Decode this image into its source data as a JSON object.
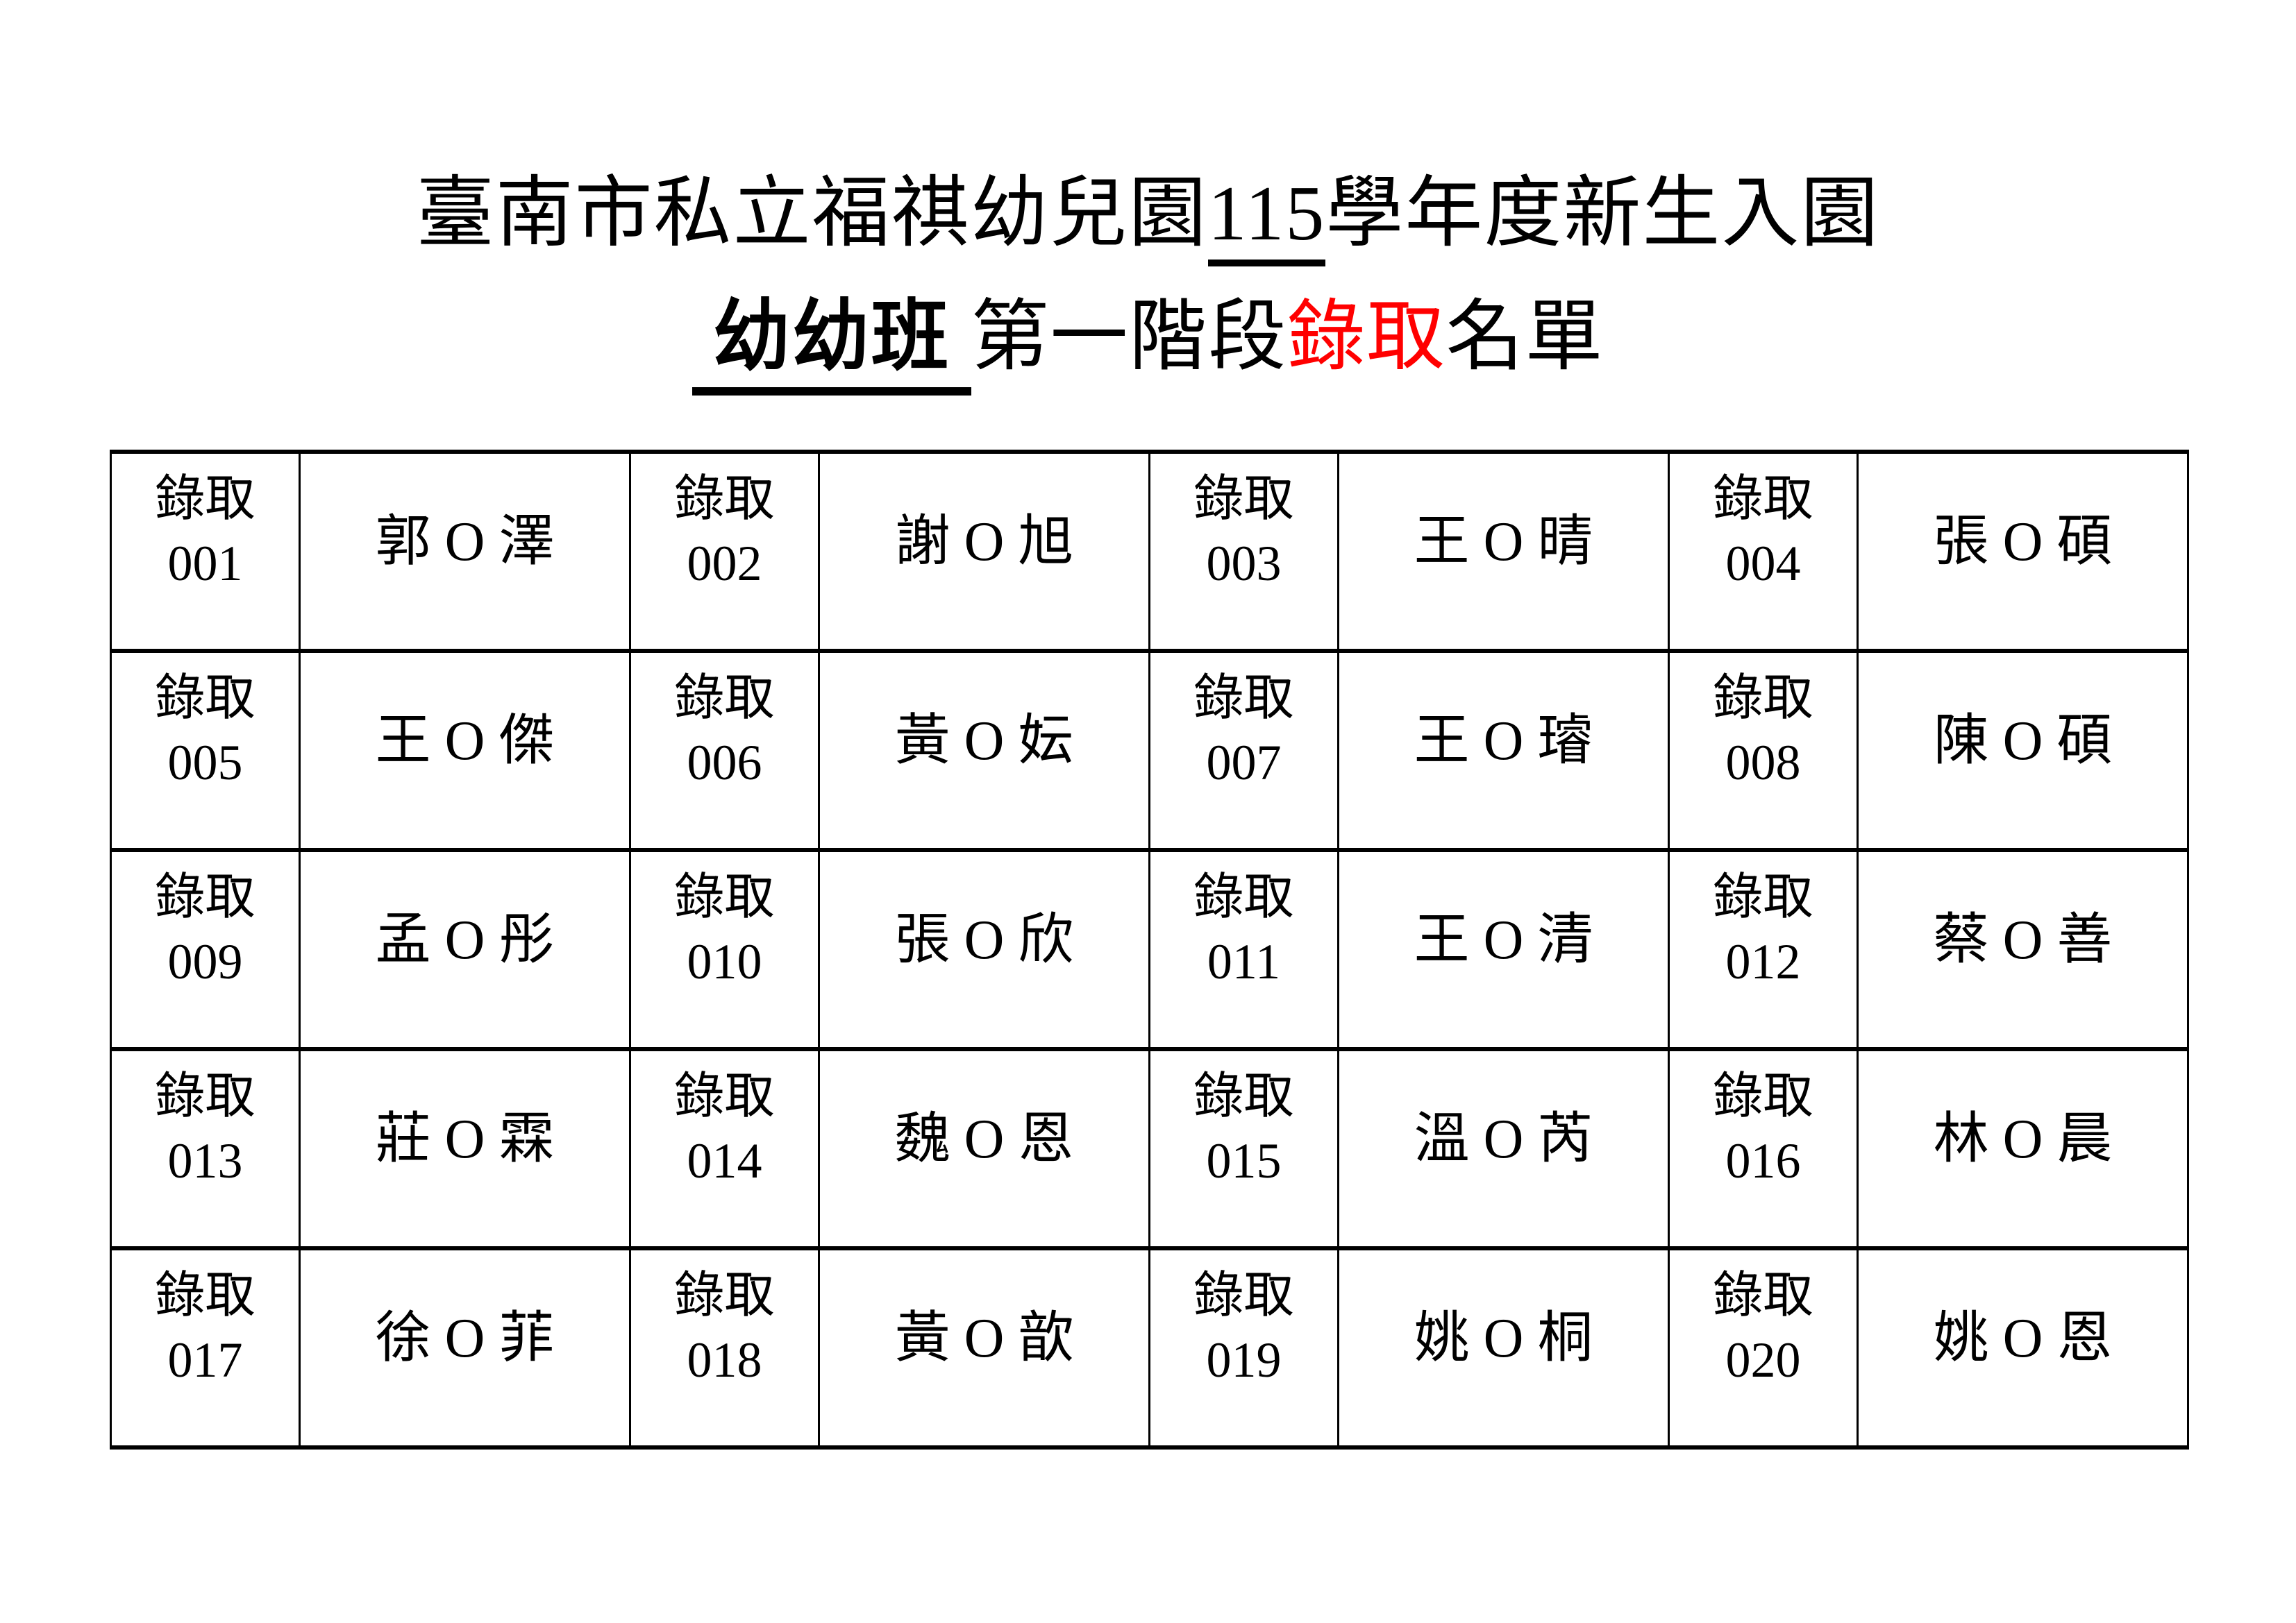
{
  "title": {
    "line1_prefix": "臺南市私立福祺幼兒園",
    "line1_underlined": "115",
    "line1_suffix": "學年度新生入園",
    "line2_class_underlined": " 幼幼班 ",
    "line2_mid": "第一階段",
    "line2_highlight": "錄取",
    "line2_suffix": "名單"
  },
  "colors": {
    "highlight_red": "#ff0000",
    "text_black": "#000000",
    "table_border": "#000000",
    "page_background": "#ffffff"
  },
  "admission_label": "錄取",
  "layout": {
    "rows": 5,
    "pairs_per_row": 4
  },
  "entries": [
    {
      "id": "001",
      "name": "郭 O 澤"
    },
    {
      "id": "002",
      "name": "謝 O 旭"
    },
    {
      "id": "003",
      "name": "王 O 晴"
    },
    {
      "id": "004",
      "name": "張 O 碩"
    },
    {
      "id": "005",
      "name": "王 O 傑"
    },
    {
      "id": "006",
      "name": "黃 O 妘"
    },
    {
      "id": "007",
      "name": "王 O 璿"
    },
    {
      "id": "008",
      "name": "陳 O 碩"
    },
    {
      "id": "009",
      "name": "孟 O 彤"
    },
    {
      "id": "010",
      "name": "張 O 欣"
    },
    {
      "id": "011",
      "name": "王 O 清"
    },
    {
      "id": "012",
      "name": "蔡 O 善"
    },
    {
      "id": "013",
      "name": "莊 O 霖"
    },
    {
      "id": "014",
      "name": "魏 O 恩"
    },
    {
      "id": "015",
      "name": "溫 O 芮"
    },
    {
      "id": "016",
      "name": "林 O 晨"
    },
    {
      "id": "017",
      "name": "徐 O 菲"
    },
    {
      "id": "018",
      "name": "黃 O 歆"
    },
    {
      "id": "019",
      "name": "姚 O 桐"
    },
    {
      "id": "020",
      "name": "姚 O 恩"
    }
  ]
}
